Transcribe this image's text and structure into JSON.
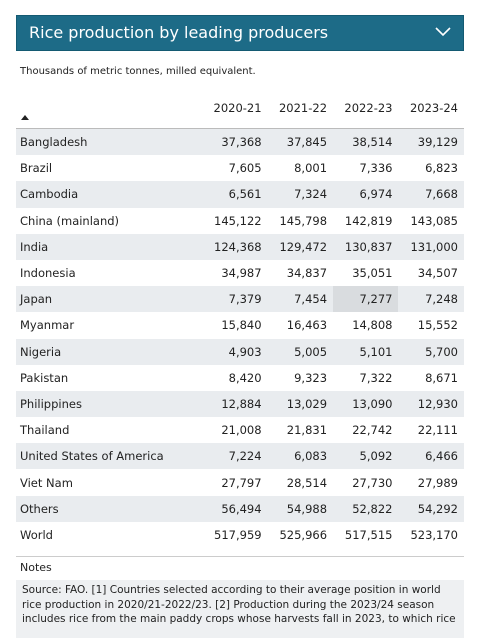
{
  "header": {
    "title": "Rice production by leading producers"
  },
  "subtitle": "Thousands of metric tonnes, milled equivalent.",
  "table": {
    "columns": [
      "2020-21",
      "2021-22",
      "2022-23",
      "2023-24"
    ],
    "rows": [
      [
        "Bangladesh",
        "37,368",
        "37,845",
        "38,514",
        "39,129"
      ],
      [
        "Brazil",
        "7,605",
        "8,001",
        "7,336",
        "6,823"
      ],
      [
        "Cambodia",
        "6,561",
        "7,324",
        "6,974",
        "7,668"
      ],
      [
        "China (mainland)",
        "145,122",
        "145,798",
        "142,819",
        "143,085"
      ],
      [
        "India",
        "124,368",
        "129,472",
        "130,837",
        "131,000"
      ],
      [
        "Indonesia",
        "34,987",
        "34,837",
        "35,051",
        "34,507"
      ],
      [
        "Japan",
        "7,379",
        "7,454",
        "7,277",
        "7,248"
      ],
      [
        "Myanmar",
        "15,840",
        "16,463",
        "14,808",
        "15,552"
      ],
      [
        "Nigeria",
        "4,903",
        "5,005",
        "5,101",
        "5,700"
      ],
      [
        "Pakistan",
        "8,420",
        "9,323",
        "7,322",
        "8,671"
      ],
      [
        "Philippines",
        "12,884",
        "13,029",
        "13,090",
        "12,930"
      ],
      [
        "Thailand",
        "21,008",
        "21,831",
        "22,742",
        "22,111"
      ],
      [
        "United States of America",
        "7,224",
        "6,083",
        "5,092",
        "6,466"
      ],
      [
        "Viet Nam",
        "27,797",
        "28,514",
        "27,730",
        "27,989"
      ],
      [
        "Others",
        "56,494",
        "54,988",
        "52,822",
        "54,292"
      ],
      [
        "World",
        "517,959",
        "525,966",
        "517,515",
        "523,170"
      ]
    ]
  },
  "notes": {
    "title": "Notes",
    "source": "Source: FAO. [1] Countries selected according to their average position in world rice production in 2020/21-2022/23. [2] Production during the 2023/24 season includes rice from the main paddy crops whose harvests fall in 2023, to which rice"
  }
}
